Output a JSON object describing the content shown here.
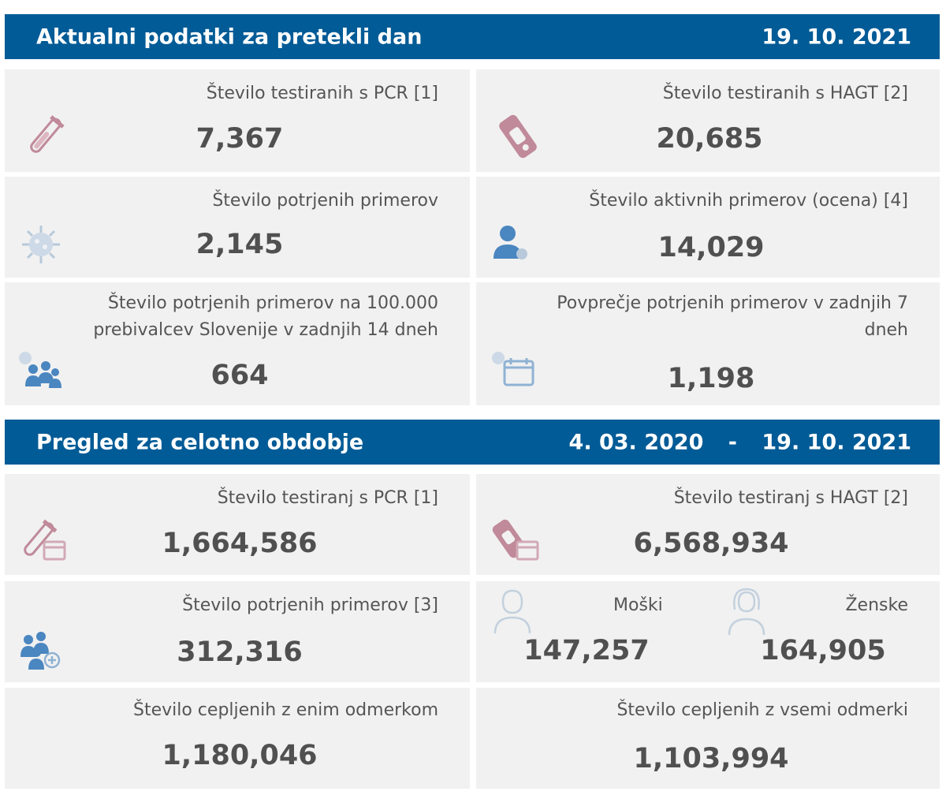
{
  "daily": {
    "title": "Aktualni podatki za pretekli dan",
    "date": "19. 10. 2021",
    "cards": {
      "pcr": {
        "label": "Število testiranih s PCR [1]",
        "value": "7,367",
        "icon": "test-tube-icon"
      },
      "hagt": {
        "label": "Število testiranih s HAGT [2]",
        "value": "20,685",
        "icon": "rapid-test-icon"
      },
      "confirmed": {
        "label": "Število potrjenih primerov",
        "value": "2,145",
        "icon": "virus-icon"
      },
      "active": {
        "label": "Število aktivnih primerov (ocena) [4]",
        "value": "14,029",
        "icon": "person-virus-icon"
      },
      "per100k": {
        "label_line1": "Število potrjenih primerov na 100.000",
        "label_line2": "prebivalcev Slovenije v zadnjih 14 dneh",
        "value": "664",
        "icon": "group-virus-icon"
      },
      "avg7": {
        "label_line1": "Povprečje potrjenih primerov v zadnjih 7",
        "label_line2": "dneh",
        "value": "1,198",
        "icon": "calendar-virus-icon"
      }
    }
  },
  "overall": {
    "title": "Pregled za celotno obdobje",
    "date_from": "4. 03. 2020",
    "date_sep": "-",
    "date_to": "19. 10. 2021",
    "cards": {
      "pcr": {
        "label": "Število testiranj s PCR [1]",
        "value": "1,664,586",
        "icon": "test-tube-calendar-icon"
      },
      "hagt": {
        "label": "Število testiranj s HAGT [2]",
        "value": "6,568,934",
        "icon": "rapid-test-calendar-icon"
      },
      "confirmed": {
        "label": "Število potrjenih primerov [3]",
        "value": "312,316",
        "icon": "group-plus-icon"
      },
      "male": {
        "label": "Moški",
        "value": "147,257",
        "icon": "man-icon"
      },
      "female": {
        "label": "Ženske",
        "value": "164,905",
        "icon": "woman-icon"
      },
      "vacc_one": {
        "label": "Število cepljenih z enim odmerkom",
        "value": "1,180,046"
      },
      "vacc_all": {
        "label": "Število cepljenih z vsemi odmerki",
        "value": "1,103,994"
      }
    }
  },
  "colors": {
    "header_bg": "#005b96",
    "card_bg": "#f1f1f1",
    "icon_pink": "#c08a9a",
    "icon_blue": "#4a86c0",
    "icon_light": "#b7c9da"
  }
}
